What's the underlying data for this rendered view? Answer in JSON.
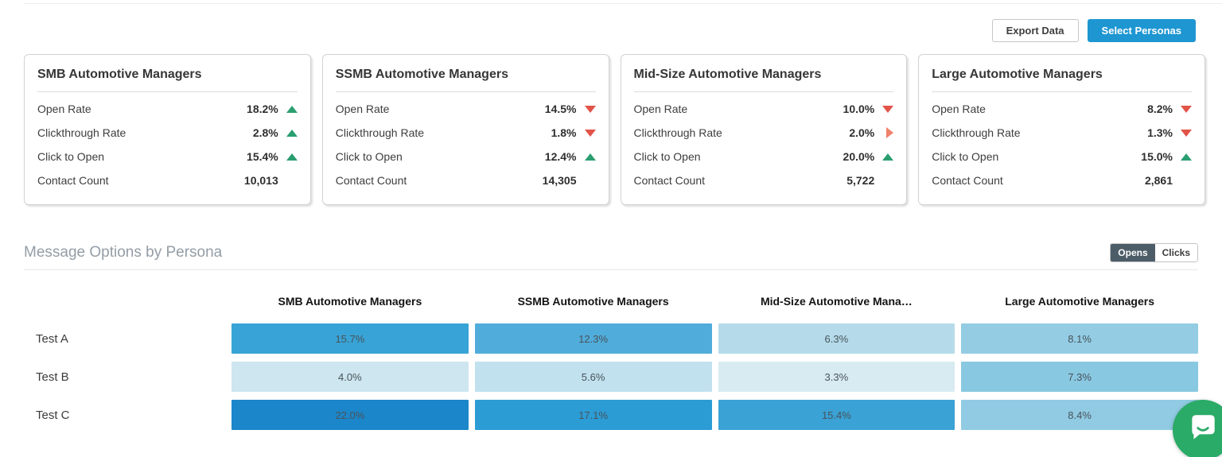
{
  "toolbar": {
    "export_label": "Export Data",
    "select_personas_label": "Select Personas"
  },
  "persona_cards": [
    {
      "title": "SMB Automotive Managers",
      "metrics": [
        {
          "label": "Open Rate",
          "value": "18.2%",
          "trend": "up"
        },
        {
          "label": "Clickthrough Rate",
          "value": "2.8%",
          "trend": "up"
        },
        {
          "label": "Click to Open",
          "value": "15.4%",
          "trend": "up"
        },
        {
          "label": "Contact Count",
          "value": "10,013",
          "trend": "none"
        }
      ]
    },
    {
      "title": "SSMB Automotive Managers",
      "metrics": [
        {
          "label": "Open Rate",
          "value": "14.5%",
          "trend": "down"
        },
        {
          "label": "Clickthrough Rate",
          "value": "1.8%",
          "trend": "down"
        },
        {
          "label": "Click to Open",
          "value": "12.4%",
          "trend": "up"
        },
        {
          "label": "Contact Count",
          "value": "14,305",
          "trend": "none"
        }
      ]
    },
    {
      "title": "Mid-Size Automotive Managers",
      "metrics": [
        {
          "label": "Open Rate",
          "value": "10.0%",
          "trend": "down"
        },
        {
          "label": "Clickthrough Rate",
          "value": "2.0%",
          "trend": "right"
        },
        {
          "label": "Click to Open",
          "value": "20.0%",
          "trend": "up"
        },
        {
          "label": "Contact Count",
          "value": "5,722",
          "trend": "none"
        }
      ]
    },
    {
      "title": "Large Automotive Managers",
      "metrics": [
        {
          "label": "Open Rate",
          "value": "8.2%",
          "trend": "down"
        },
        {
          "label": "Clickthrough Rate",
          "value": "1.3%",
          "trend": "down"
        },
        {
          "label": "Click to Open",
          "value": "15.0%",
          "trend": "up"
        },
        {
          "label": "Contact Count",
          "value": "2,861",
          "trend": "none"
        }
      ]
    }
  ],
  "message_options": {
    "title": "Message Options by Persona",
    "toggle": [
      {
        "label": "Opens",
        "active": true
      },
      {
        "label": "Clicks",
        "active": false
      }
    ]
  },
  "chart_data": {
    "type": "heatmap",
    "title": "Message Options by Persona",
    "metric_shown": "Opens",
    "columns": [
      "SMB Automotive Managers",
      "SSMB Automotive Managers",
      "Mid-Size Automotive Mana…",
      "Large Automotive Managers"
    ],
    "rows": [
      "Test A",
      "Test B",
      "Test C"
    ],
    "values": [
      [
        15.7,
        12.3,
        6.3,
        8.1
      ],
      [
        4.0,
        5.6,
        3.3,
        7.3
      ],
      [
        22.0,
        17.1,
        15.4,
        8.4
      ]
    ],
    "display": [
      [
        "15.7%",
        "12.3%",
        "6.3%",
        "8.1%"
      ],
      [
        "4.0%",
        "5.6%",
        "3.3%",
        "7.3%"
      ],
      [
        "22.0%",
        "17.1%",
        "15.4%",
        "8.4%"
      ]
    ],
    "cell_colors": [
      [
        "#38a3d6",
        "#50acda",
        "#b5dbea",
        "#93cce3"
      ],
      [
        "#cee6ef",
        "#c0e1ed",
        "#d9ebf2",
        "#89c8e1"
      ],
      [
        "#1c86ca",
        "#2c9cd5",
        "#3aa2d5",
        "#90cbe3"
      ]
    ]
  },
  "colors": {
    "accent_blue": "#1e96d2",
    "trend_up_green": "#2b9e70",
    "trend_down_red": "#e25348",
    "trend_flat_orange": "#f0816b",
    "toggle_active": "#4d5d68",
    "chat_green": "#2aab67"
  },
  "chat": {
    "icon": "chat-bubble-icon"
  }
}
